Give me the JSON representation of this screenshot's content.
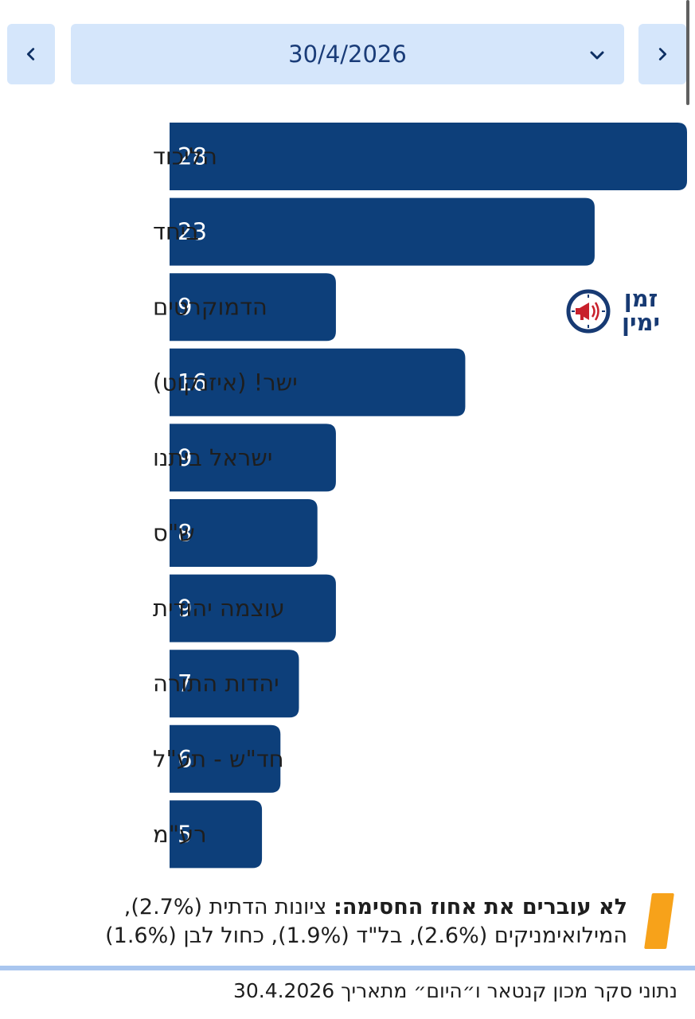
{
  "nav": {
    "prev_icon": "chevron-left-icon",
    "next_icon": "chevron-right-icon",
    "date": "30/4/2026",
    "dropdown_icon": "chevron-down-icon"
  },
  "chart_data": {
    "type": "bar",
    "orientation": "horizontal",
    "categories": [
      "הליכוד",
      "ביחד",
      "הדמוקרטים",
      "ישר! (איזנקוט)",
      "ישראל ביתנו",
      "ש\"ס",
      "עוצמה יהודית",
      "יהדות התורה",
      "חד\"ש - תע\"ל",
      "רע\"מ"
    ],
    "values": [
      28,
      23,
      9,
      16,
      9,
      8,
      9,
      7,
      6,
      5
    ],
    "xlim": [
      0,
      28
    ],
    "bar_color": "#0d3f7a",
    "grid": false
  },
  "logo": {
    "line1": "זמן",
    "line2": "ימין",
    "icon": "megaphone-clock-icon",
    "colors": {
      "ring": "#173a73",
      "megaphone": "#c8202b"
    }
  },
  "note": {
    "bold_text": "לא עוברים את אחוז החסימה:",
    "text": " ציונות הדתית (2.7%), המילואימניקים (2.6%), בל\"ד (1.9%), כחול לבן (1.6%)",
    "accent_color": "#f7a21a"
  },
  "source": "נתוני סקר מכון קנטאר ו״היום״ מתאריך 30.4.2026"
}
